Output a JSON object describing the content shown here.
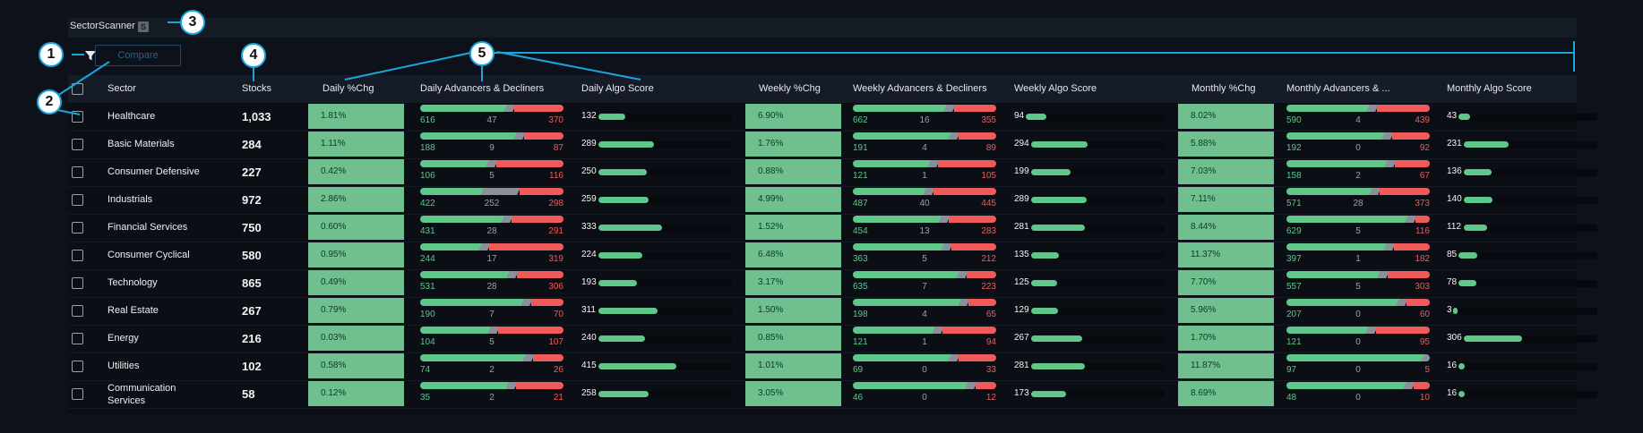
{
  "window": {
    "title": "SectorScanner",
    "badge": "S"
  },
  "toolbar": {
    "compare_label": "Compare"
  },
  "columns": {
    "sector": "Sector",
    "stocks": "Stocks",
    "daily_pct": "Daily %Chg",
    "daily_adv": "Daily Advancers & Decliners",
    "daily_algo": "Daily Algo Score",
    "weekly_pct": "Weekly %Chg",
    "weekly_adv": "Weekly Advancers & Decliners",
    "weekly_algo": "Weekly Algo Score",
    "monthly_pct": "Monthly %Chg",
    "monthly_adv": "Monthly Advancers & ...",
    "monthly_algo": "Monthly Algo Score"
  },
  "callouts": [
    "1",
    "2",
    "3",
    "4",
    "5"
  ],
  "colors": {
    "advancers": "#5fc789",
    "decliners": "#f05a5a",
    "unchanged": "#8a8f98",
    "pct_cell": "#6fc08e",
    "callout": "#1aa6dd"
  },
  "rows": [
    {
      "sector": "Healthcare",
      "stocks": "1,033",
      "daily_pct": "1.81%",
      "daily_adv": {
        "a": "616",
        "u": "47",
        "d": "370"
      },
      "daily_algo": "132",
      "weekly_pct": "6.90%",
      "weekly_adv": {
        "a": "662",
        "u": "16",
        "d": "355"
      },
      "weekly_algo": "94",
      "monthly_pct": "8.02%",
      "monthly_adv": {
        "a": "590",
        "u": "4",
        "d": "439"
      },
      "monthly_algo": "43"
    },
    {
      "sector": "Basic Materials",
      "stocks": "284",
      "daily_pct": "1.11%",
      "daily_adv": {
        "a": "188",
        "u": "9",
        "d": "87"
      },
      "daily_algo": "289",
      "weekly_pct": "1.76%",
      "weekly_adv": {
        "a": "191",
        "u": "4",
        "d": "89"
      },
      "weekly_algo": "294",
      "monthly_pct": "5.88%",
      "monthly_adv": {
        "a": "192",
        "u": "0",
        "d": "92"
      },
      "monthly_algo": "231"
    },
    {
      "sector": "Consumer Defensive",
      "stocks": "227",
      "daily_pct": "0.42%",
      "daily_adv": {
        "a": "106",
        "u": "5",
        "d": "116"
      },
      "daily_algo": "250",
      "weekly_pct": "0.88%",
      "weekly_adv": {
        "a": "121",
        "u": "1",
        "d": "105"
      },
      "weekly_algo": "199",
      "monthly_pct": "7.03%",
      "monthly_adv": {
        "a": "158",
        "u": "2",
        "d": "67"
      },
      "monthly_algo": "136"
    },
    {
      "sector": "Industrials",
      "stocks": "972",
      "daily_pct": "2.86%",
      "daily_adv": {
        "a": "422",
        "u": "252",
        "d": "298"
      },
      "daily_algo": "259",
      "weekly_pct": "4.99%",
      "weekly_adv": {
        "a": "487",
        "u": "40",
        "d": "445"
      },
      "weekly_algo": "289",
      "monthly_pct": "7.11%",
      "monthly_adv": {
        "a": "571",
        "u": "28",
        "d": "373"
      },
      "monthly_algo": "140"
    },
    {
      "sector": "Financial Services",
      "stocks": "750",
      "daily_pct": "0.60%",
      "daily_adv": {
        "a": "431",
        "u": "28",
        "d": "291"
      },
      "daily_algo": "333",
      "weekly_pct": "1.52%",
      "weekly_adv": {
        "a": "454",
        "u": "13",
        "d": "283"
      },
      "weekly_algo": "281",
      "monthly_pct": "8.44%",
      "monthly_adv": {
        "a": "629",
        "u": "5",
        "d": "116"
      },
      "monthly_algo": "112"
    },
    {
      "sector": "Consumer Cyclical",
      "stocks": "580",
      "daily_pct": "0.95%",
      "daily_adv": {
        "a": "244",
        "u": "17",
        "d": "319"
      },
      "daily_algo": "224",
      "weekly_pct": "6.48%",
      "weekly_adv": {
        "a": "363",
        "u": "5",
        "d": "212"
      },
      "weekly_algo": "135",
      "monthly_pct": "11.37%",
      "monthly_adv": {
        "a": "397",
        "u": "1",
        "d": "182"
      },
      "monthly_algo": "85"
    },
    {
      "sector": "Technology",
      "stocks": "865",
      "daily_pct": "0.49%",
      "daily_adv": {
        "a": "531",
        "u": "28",
        "d": "306"
      },
      "daily_algo": "193",
      "weekly_pct": "3.17%",
      "weekly_adv": {
        "a": "635",
        "u": "7",
        "d": "223"
      },
      "weekly_algo": "125",
      "monthly_pct": "7.70%",
      "monthly_adv": {
        "a": "557",
        "u": "5",
        "d": "303"
      },
      "monthly_algo": "78"
    },
    {
      "sector": "Real Estate",
      "stocks": "267",
      "daily_pct": "0.79%",
      "daily_adv": {
        "a": "190",
        "u": "7",
        "d": "70"
      },
      "daily_algo": "311",
      "weekly_pct": "1.50%",
      "weekly_adv": {
        "a": "198",
        "u": "4",
        "d": "65"
      },
      "weekly_algo": "129",
      "monthly_pct": "5.96%",
      "monthly_adv": {
        "a": "207",
        "u": "0",
        "d": "60"
      },
      "monthly_algo": "3"
    },
    {
      "sector": "Energy",
      "stocks": "216",
      "daily_pct": "0.03%",
      "daily_adv": {
        "a": "104",
        "u": "5",
        "d": "107"
      },
      "daily_algo": "240",
      "weekly_pct": "0.85%",
      "weekly_adv": {
        "a": "121",
        "u": "1",
        "d": "94"
      },
      "weekly_algo": "267",
      "monthly_pct": "1.70%",
      "monthly_adv": {
        "a": "121",
        "u": "0",
        "d": "95"
      },
      "monthly_algo": "306"
    },
    {
      "sector": "Utilities",
      "stocks": "102",
      "daily_pct": "0.58%",
      "daily_adv": {
        "a": "74",
        "u": "2",
        "d": "26"
      },
      "daily_algo": "415",
      "weekly_pct": "1.01%",
      "weekly_adv": {
        "a": "69",
        "u": "0",
        "d": "33"
      },
      "weekly_algo": "281",
      "monthly_pct": "11.87%",
      "monthly_adv": {
        "a": "97",
        "u": "0",
        "d": "5"
      },
      "monthly_algo": "16"
    },
    {
      "sector": "Communication Services",
      "stocks": "58",
      "daily_pct": "0.12%",
      "daily_adv": {
        "a": "35",
        "u": "2",
        "d": "21"
      },
      "daily_algo": "258",
      "weekly_pct": "3.05%",
      "weekly_adv": {
        "a": "46",
        "u": "0",
        "d": "12"
      },
      "weekly_algo": "173",
      "monthly_pct": "8.69%",
      "monthly_adv": {
        "a": "48",
        "u": "0",
        "d": "10"
      },
      "monthly_algo": "16"
    }
  ]
}
